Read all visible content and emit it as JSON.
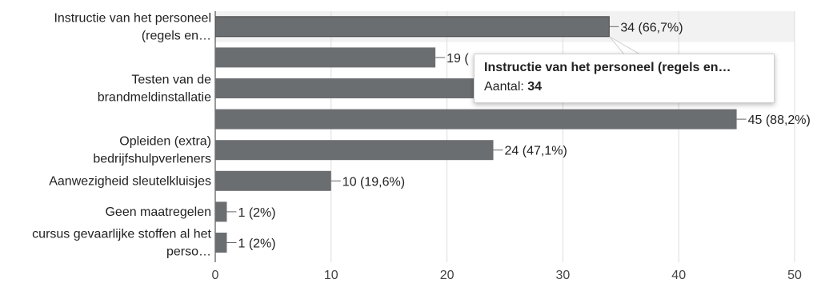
{
  "chart_data": {
    "type": "bar",
    "orientation": "horizontal",
    "categories": [
      [
        "Instructie van het personeel",
        "(regels en…"
      ],
      [
        ""
      ],
      [
        "Testen van de",
        "brandmeldinstallatie"
      ],
      [
        ""
      ],
      [
        "Opleiden (extra)",
        "bedrijfshulpverleners"
      ],
      [
        "Aanwezigheid sleutelkluisjes"
      ],
      [
        "Geen maatregelen"
      ],
      [
        "cursus gevaarlijke stoffen al het",
        "perso…"
      ]
    ],
    "values": [
      34,
      19,
      27,
      45,
      24,
      10,
      1,
      1
    ],
    "data_labels": [
      "34 (66,7%)",
      "19 (",
      "",
      "45 (88,2%)",
      "24 (47,1%)",
      "10 (19,6%)",
      "1 (2%)",
      "1 (2%)"
    ],
    "x_ticks": [
      0,
      10,
      20,
      30,
      40,
      50
    ],
    "xlim": [
      0,
      50
    ],
    "grid": true,
    "bar_color": "#6b6e71",
    "highlight_color": "#f2f2f2"
  },
  "tooltip": {
    "title": "Instructie van het personeel (regels en…",
    "value_label": "Aantal:",
    "value": "34"
  }
}
